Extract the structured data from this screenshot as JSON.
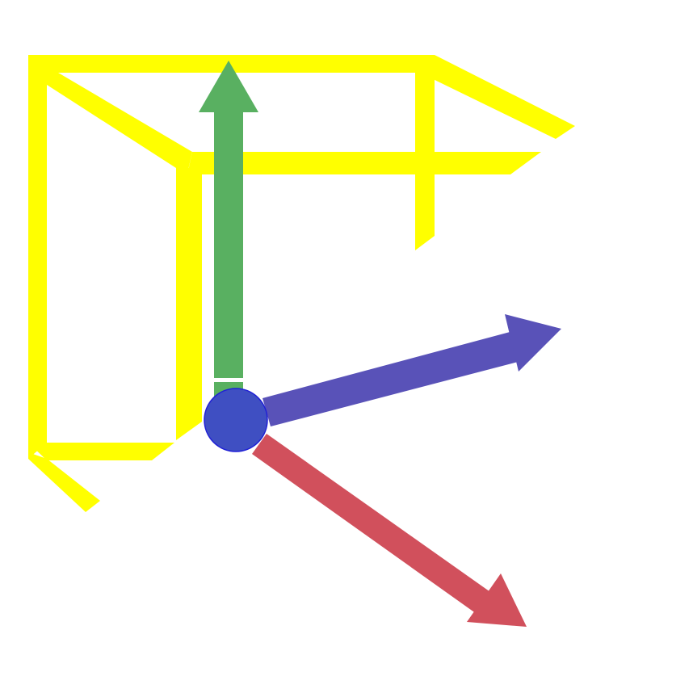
{
  "canvas": {
    "background": "#ffffff"
  },
  "frame": {
    "color": "#ffff00",
    "description_hidden": ""
  },
  "axes": [
    {
      "id": "y",
      "color": "#59b061",
      "direction": "up"
    },
    {
      "id": "x",
      "color": "#5952b8",
      "direction": "right"
    },
    {
      "id": "z",
      "color": "#d1505c",
      "direction": "down-right"
    }
  ],
  "origin": {
    "fill": "#3f4fc2",
    "stroke": "#1f1fd6"
  }
}
